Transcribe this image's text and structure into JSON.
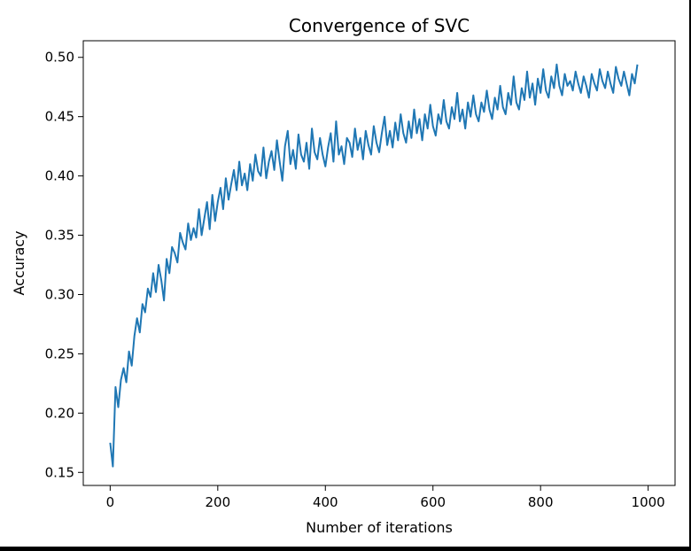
{
  "chart_data": {
    "type": "line",
    "title": "Convergence of SVC",
    "xlabel": "Number of iterations",
    "ylabel": "Accuracy",
    "xlim": [
      -50,
      1050
    ],
    "ylim": [
      0.139,
      0.514
    ],
    "x_ticks": [
      0,
      200,
      400,
      600,
      800,
      1000
    ],
    "x_tick_labels": [
      "0",
      "200",
      "400",
      "600",
      "800",
      "1000"
    ],
    "y_ticks": [
      0.15,
      0.2,
      0.25,
      0.3,
      0.35,
      0.4,
      0.45,
      0.5
    ],
    "y_tick_labels": [
      "0.15",
      "0.20",
      "0.25",
      "0.30",
      "0.35",
      "0.40",
      "0.45",
      "0.50"
    ],
    "grid": false,
    "legend": "none",
    "series": [
      {
        "color": "#1f77b4",
        "x_start": 0,
        "x_step": 5,
        "values": [
          0.175,
          0.155,
          0.222,
          0.205,
          0.228,
          0.238,
          0.226,
          0.252,
          0.24,
          0.265,
          0.28,
          0.268,
          0.292,
          0.285,
          0.305,
          0.298,
          0.318,
          0.302,
          0.325,
          0.312,
          0.295,
          0.33,
          0.318,
          0.34,
          0.335,
          0.327,
          0.352,
          0.344,
          0.338,
          0.36,
          0.346,
          0.356,
          0.348,
          0.372,
          0.35,
          0.364,
          0.378,
          0.355,
          0.384,
          0.362,
          0.378,
          0.39,
          0.372,
          0.398,
          0.38,
          0.393,
          0.405,
          0.388,
          0.412,
          0.392,
          0.402,
          0.388,
          0.41,
          0.396,
          0.418,
          0.404,
          0.4,
          0.424,
          0.398,
          0.412,
          0.421,
          0.405,
          0.43,
          0.412,
          0.396,
          0.425,
          0.438,
          0.41,
          0.422,
          0.406,
          0.435,
          0.418,
          0.412,
          0.428,
          0.406,
          0.44,
          0.42,
          0.414,
          0.432,
          0.418,
          0.408,
          0.424,
          0.436,
          0.412,
          0.446,
          0.418,
          0.425,
          0.41,
          0.432,
          0.428,
          0.416,
          0.44,
          0.422,
          0.432,
          0.414,
          0.438,
          0.426,
          0.418,
          0.442,
          0.428,
          0.42,
          0.436,
          0.45,
          0.426,
          0.438,
          0.424,
          0.445,
          0.43,
          0.452,
          0.436,
          0.428,
          0.446,
          0.432,
          0.456,
          0.436,
          0.448,
          0.43,
          0.452,
          0.44,
          0.46,
          0.442,
          0.434,
          0.452,
          0.444,
          0.464,
          0.446,
          0.44,
          0.458,
          0.448,
          0.47,
          0.446,
          0.456,
          0.44,
          0.462,
          0.45,
          0.468,
          0.452,
          0.446,
          0.462,
          0.454,
          0.472,
          0.456,
          0.448,
          0.466,
          0.456,
          0.476,
          0.458,
          0.452,
          0.47,
          0.46,
          0.484,
          0.462,
          0.456,
          0.474,
          0.464,
          0.488,
          0.466,
          0.478,
          0.46,
          0.482,
          0.47,
          0.49,
          0.472,
          0.466,
          0.484,
          0.474,
          0.494,
          0.476,
          0.468,
          0.486,
          0.476,
          0.48,
          0.472,
          0.488,
          0.478,
          0.47,
          0.484,
          0.476,
          0.466,
          0.486,
          0.478,
          0.472,
          0.49,
          0.48,
          0.474,
          0.488,
          0.478,
          0.47,
          0.492,
          0.482,
          0.476,
          0.488,
          0.478,
          0.468,
          0.486,
          0.478,
          0.494
        ]
      }
    ]
  }
}
